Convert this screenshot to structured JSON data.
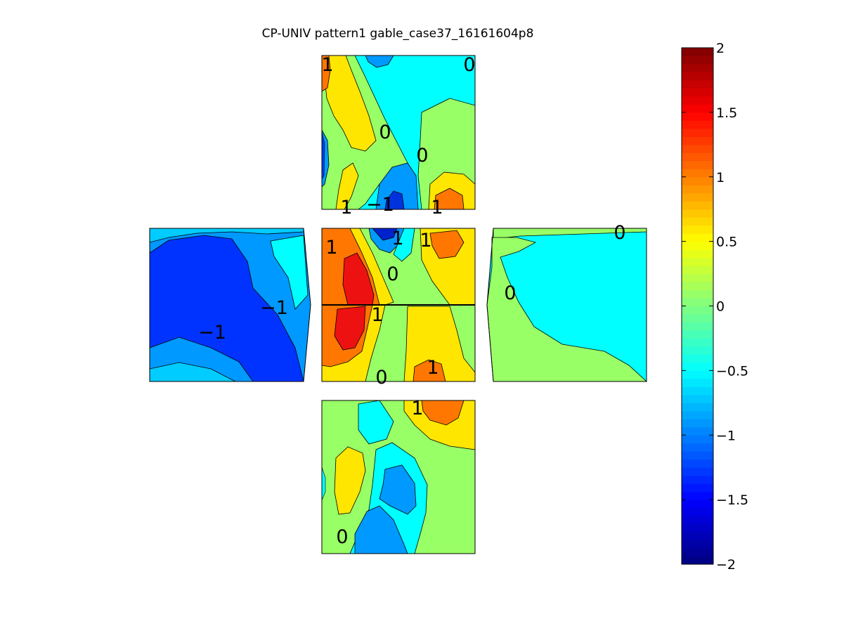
{
  "chart_data": {
    "type": "heatmap",
    "title": "CP-UNIV pattern1 gable_case37_16161604p8",
    "colorbar": {
      "range": [
        -2,
        2
      ],
      "ticks": [
        2,
        1.5,
        1,
        0.5,
        0,
        -0.5,
        -1,
        -1.5,
        -2
      ],
      "tick_labels": [
        "2",
        "1.5",
        "1",
        "0.5",
        "0",
        "−0.5",
        "−1",
        "−1.5",
        "−2"
      ],
      "colormap": "jet",
      "levels": 64
    },
    "panels": [
      {
        "name": "top",
        "contour_labels": [
          "1",
          "0",
          "0",
          "0",
          "1",
          "−1",
          "1"
        ]
      },
      {
        "name": "left",
        "contour_labels": [
          "−1",
          "−1"
        ]
      },
      {
        "name": "center",
        "contour_labels": [
          "1",
          "1",
          "1",
          "0",
          "1",
          "0",
          "1"
        ]
      },
      {
        "name": "right",
        "contour_labels": [
          "0",
          "0"
        ]
      },
      {
        "name": "bottom",
        "contour_labels": [
          "1",
          "0"
        ]
      }
    ]
  }
}
